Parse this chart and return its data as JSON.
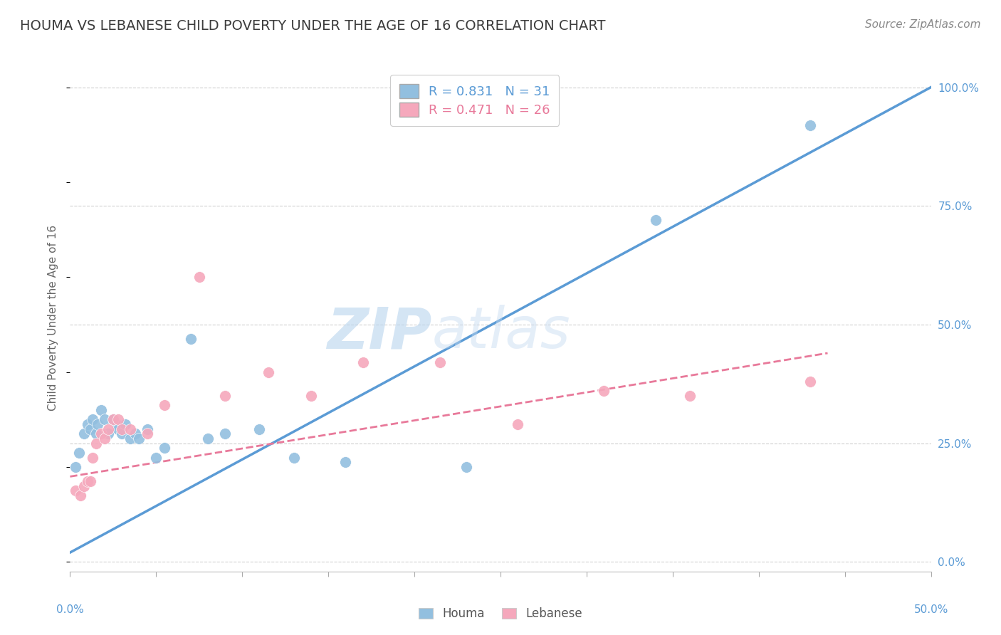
{
  "title": "HOUMA VS LEBANESE CHILD POVERTY UNDER THE AGE OF 16 CORRELATION CHART",
  "source": "Source: ZipAtlas.com",
  "ylabel": "Child Poverty Under the Age of 16",
  "xlim": [
    0.0,
    0.5
  ],
  "ylim": [
    -0.02,
    1.05
  ],
  "ytick_vals": [
    0.0,
    0.25,
    0.5,
    0.75,
    1.0
  ],
  "ytick_labels": [
    "0.0%",
    "25.0%",
    "50.0%",
    "75.0%",
    "100.0%"
  ],
  "xtick_positions": [
    0.0,
    0.05,
    0.1,
    0.15,
    0.2,
    0.25,
    0.3,
    0.35,
    0.4,
    0.45,
    0.5
  ],
  "houma_R": 0.831,
  "houma_N": 31,
  "lebanese_R": 0.471,
  "lebanese_N": 26,
  "houma_color": "#92bfdf",
  "lebanese_color": "#f5a8bc",
  "houma_line_color": "#5b9bd5",
  "lebanese_line_color": "#e8799a",
  "watermark": "ZIPatlas",
  "watermark_color": "#cce3f5",
  "background_color": "#ffffff",
  "grid_color": "#d0d0d0",
  "title_color": "#3c3c3c",
  "source_color": "#888888",
  "axis_label_color": "#666666",
  "tick_label_color": "#5b9bd5",
  "houma_x": [
    0.003,
    0.005,
    0.008,
    0.01,
    0.012,
    0.013,
    0.015,
    0.016,
    0.018,
    0.02,
    0.022,
    0.025,
    0.027,
    0.028,
    0.03,
    0.032,
    0.035,
    0.038,
    0.04,
    0.045,
    0.05,
    0.055,
    0.07,
    0.08,
    0.09,
    0.11,
    0.13,
    0.16,
    0.23,
    0.34,
    0.43
  ],
  "houma_y": [
    0.2,
    0.23,
    0.27,
    0.29,
    0.28,
    0.3,
    0.27,
    0.29,
    0.32,
    0.3,
    0.27,
    0.3,
    0.29,
    0.28,
    0.27,
    0.29,
    0.26,
    0.27,
    0.26,
    0.28,
    0.22,
    0.24,
    0.47,
    0.26,
    0.27,
    0.28,
    0.22,
    0.21,
    0.2,
    0.72,
    0.92
  ],
  "lebanese_x": [
    0.003,
    0.006,
    0.008,
    0.01,
    0.012,
    0.013,
    0.015,
    0.018,
    0.02,
    0.022,
    0.025,
    0.028,
    0.03,
    0.035,
    0.045,
    0.055,
    0.075,
    0.09,
    0.115,
    0.14,
    0.17,
    0.215,
    0.26,
    0.31,
    0.36,
    0.43
  ],
  "lebanese_y": [
    0.15,
    0.14,
    0.16,
    0.17,
    0.17,
    0.22,
    0.25,
    0.27,
    0.26,
    0.28,
    0.3,
    0.3,
    0.28,
    0.28,
    0.27,
    0.33,
    0.6,
    0.35,
    0.4,
    0.35,
    0.42,
    0.42,
    0.29,
    0.36,
    0.35,
    0.38
  ],
  "houma_line_x": [
    0.0,
    0.5
  ],
  "houma_line_y": [
    0.02,
    1.0
  ],
  "lebanese_line_x": [
    0.0,
    0.44
  ],
  "lebanese_line_y": [
    0.18,
    0.44
  ]
}
